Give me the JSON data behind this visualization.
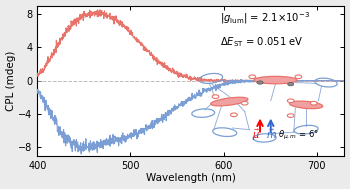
{
  "xlim": [
    400,
    730
  ],
  "ylim": [
    -9,
    9
  ],
  "xticks": [
    400,
    500,
    600,
    700
  ],
  "yticks": [
    -8,
    -4,
    0,
    4,
    8
  ],
  "xlabel": "Wavelength (nm)",
  "ylabel": "CPL (mdeg)",
  "red_color": "#E8736A",
  "blue_color": "#7B9FD4",
  "red_fill": "#E8736A",
  "blue_fill": "#9BB4D8",
  "figsize": [
    3.5,
    1.89
  ],
  "dpi": 100,
  "noise_seed": 12
}
